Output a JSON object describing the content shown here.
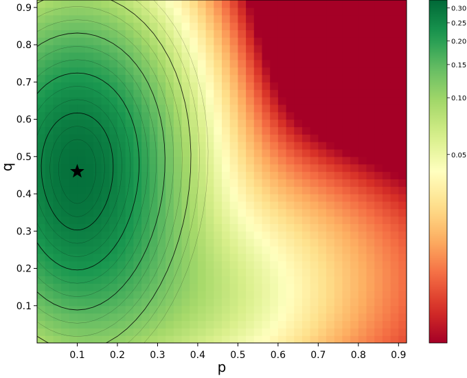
{
  "chart_data": {
    "type": "heatmap",
    "subtype": "filled-contour",
    "title": "",
    "xlabel": "p",
    "ylabel": "q",
    "xlim": [
      0.0,
      0.92
    ],
    "ylim": [
      0.0,
      0.92
    ],
    "x_ticks": [
      0.1,
      0.2,
      0.3,
      0.4,
      0.5,
      0.6,
      0.7,
      0.8,
      0.9
    ],
    "x_tick_labels": [
      "0.1",
      "0.2",
      "0.3",
      "0.4",
      "0.5",
      "0.6",
      "0.7",
      "0.8",
      "0.9"
    ],
    "y_ticks": [
      0.1,
      0.2,
      0.3,
      0.4,
      0.5,
      0.6,
      0.7,
      0.8,
      0.9
    ],
    "y_tick_labels": [
      "0.1",
      "0.2",
      "0.3",
      "0.4",
      "0.5",
      "0.6",
      "0.7",
      "0.8",
      "0.9"
    ],
    "colorbar": {
      "colormap": "RdYlGn",
      "scale": "log",
      "range": [
        0.005,
        0.33
      ],
      "ticks": [
        0.05,
        0.1,
        0.15,
        0.2,
        0.25,
        0.3
      ],
      "tick_labels": [
        "0.05",
        "0.10",
        "0.15",
        "0.20",
        "0.25",
        "0.30"
      ]
    },
    "peak": {
      "x": 0.1,
      "y": 0.46,
      "value": 0.32,
      "marker": "star"
    },
    "colormap_stops": [
      "#a50026",
      "#d73027",
      "#f46d43",
      "#fdae61",
      "#fee08b",
      "#ffffbf",
      "#d9ef8b",
      "#a6d96a",
      "#66bd63",
      "#1a9850",
      "#006837"
    ]
  }
}
